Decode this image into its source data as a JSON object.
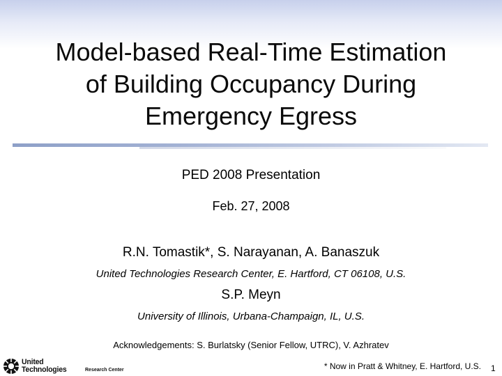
{
  "slide": {
    "title_lines": [
      "Model-based Real-Time Estimation",
      "of Building Occupancy During",
      "Emergency Egress"
    ],
    "subtitle": "PED 2008 Presentation",
    "date": "Feb. 27, 2008",
    "authors_group_1": "R.N. Tomastik*, S. Narayanan, A. Banaszuk",
    "affiliation_1": "United Technologies Research Center, E. Hartford, CT 06108, U.S.",
    "authors_group_2": "S.P. Meyn",
    "affiliation_2": "University of Illinois, Urbana-Champaign, IL, U.S.",
    "acknowledgements": "Acknowledgements: S. Burlatsky (Senior Fellow, UTRC), V. Azhratev",
    "footnote": "* Now in Pratt & Whitney, E. Hartford, U.S.",
    "page_number": "1"
  },
  "logo": {
    "line1": "United",
    "line2": "Technologies",
    "sub": "Research Center",
    "icon": "united-technologies-logo-icon"
  },
  "colors": {
    "top_gradient": "#c7d0ec",
    "divider": "#8ea0c8"
  }
}
